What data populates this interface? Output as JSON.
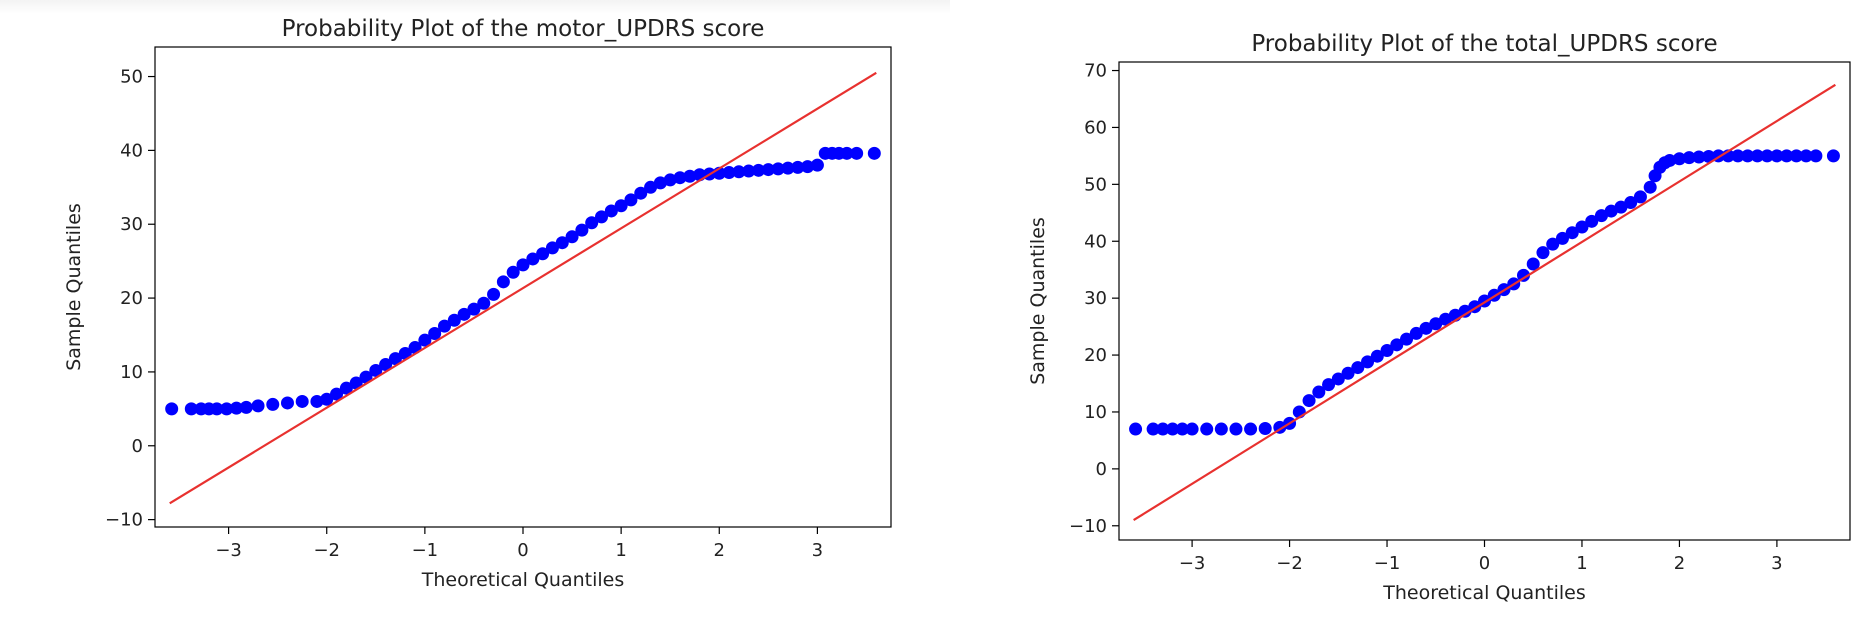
{
  "chart_data": [
    {
      "type": "scatter",
      "title": "Probability Plot of the motor_UPDRS score",
      "xlabel": "Theoretical Quantiles",
      "ylabel": "Sample Quantiles",
      "xlim": [
        -3.75,
        3.75
      ],
      "ylim": [
        -11,
        54
      ],
      "xticks": [
        -3,
        -2,
        -1,
        0,
        1,
        2,
        3
      ],
      "xtick_labels": [
        "−3",
        "−2",
        "−1",
        "0",
        "1",
        "2",
        "3"
      ],
      "yticks": [
        -10,
        0,
        10,
        20,
        30,
        40,
        50
      ],
      "ytick_labels": [
        "−10",
        "0",
        "10",
        "20",
        "30",
        "40",
        "50"
      ],
      "grid": false,
      "series": [
        {
          "kind": "points",
          "color": "#0000ff",
          "x": [
            -3.58,
            -3.38,
            -3.28,
            -3.2,
            -3.12,
            -3.02,
            -2.92,
            -2.82,
            -2.7,
            -2.55,
            -2.4,
            -2.25,
            -2.1,
            -2.0,
            -1.9,
            -1.8,
            -1.7,
            -1.6,
            -1.5,
            -1.4,
            -1.3,
            -1.2,
            -1.1,
            -1.0,
            -0.9,
            -0.8,
            -0.7,
            -0.6,
            -0.5,
            -0.4,
            -0.3,
            -0.2,
            -0.1,
            0.0,
            0.1,
            0.2,
            0.3,
            0.4,
            0.5,
            0.6,
            0.7,
            0.8,
            0.9,
            1.0,
            1.1,
            1.2,
            1.3,
            1.4,
            1.5,
            1.6,
            1.7,
            1.8,
            1.9,
            2.0,
            2.1,
            2.2,
            2.3,
            2.4,
            2.5,
            2.6,
            2.7,
            2.8,
            2.9,
            3.0,
            3.08,
            3.15,
            3.22,
            3.3,
            3.4,
            3.58
          ],
          "y": [
            5.0,
            5.0,
            5.0,
            5.0,
            5.0,
            5.0,
            5.1,
            5.2,
            5.4,
            5.6,
            5.8,
            6.0,
            6.0,
            6.3,
            7.0,
            7.8,
            8.5,
            9.3,
            10.2,
            11.0,
            11.8,
            12.5,
            13.3,
            14.3,
            15.2,
            16.2,
            17.0,
            17.8,
            18.5,
            19.3,
            20.5,
            22.2,
            23.5,
            24.5,
            25.3,
            26.0,
            26.8,
            27.5,
            28.3,
            29.2,
            30.2,
            31.0,
            31.8,
            32.5,
            33.3,
            34.2,
            35.0,
            35.6,
            36.0,
            36.3,
            36.5,
            36.7,
            36.8,
            36.9,
            37.0,
            37.1,
            37.2,
            37.3,
            37.4,
            37.5,
            37.6,
            37.7,
            37.8,
            38.0,
            39.6,
            39.6,
            39.6,
            39.6,
            39.6,
            39.6
          ]
        },
        {
          "kind": "line",
          "color": "#e8312f",
          "x": [
            -3.6,
            3.6
          ],
          "y": [
            -7.8,
            50.5
          ]
        }
      ]
    },
    {
      "type": "scatter",
      "title": "Probability Plot of the total_UPDRS score",
      "xlabel": "Theoretical Quantiles",
      "ylabel": "Sample Quantiles",
      "xlim": [
        -3.75,
        3.75
      ],
      "ylim": [
        -12.5,
        71.5
      ],
      "xticks": [
        -3,
        -2,
        -1,
        0,
        1,
        2,
        3
      ],
      "xtick_labels": [
        "−3",
        "−2",
        "−1",
        "0",
        "1",
        "2",
        "3"
      ],
      "yticks": [
        -10,
        0,
        10,
        20,
        30,
        40,
        50,
        60,
        70
      ],
      "ytick_labels": [
        "−10",
        "0",
        "10",
        "20",
        "30",
        "40",
        "50",
        "60",
        "70"
      ],
      "grid": false,
      "series": [
        {
          "kind": "points",
          "color": "#0000ff",
          "x": [
            -3.58,
            -3.4,
            -3.3,
            -3.2,
            -3.1,
            -3.0,
            -2.85,
            -2.7,
            -2.55,
            -2.4,
            -2.25,
            -2.1,
            -2.0,
            -1.9,
            -1.8,
            -1.7,
            -1.6,
            -1.5,
            -1.4,
            -1.3,
            -1.2,
            -1.1,
            -1.0,
            -0.9,
            -0.8,
            -0.7,
            -0.6,
            -0.5,
            -0.4,
            -0.3,
            -0.2,
            -0.1,
            0.0,
            0.1,
            0.2,
            0.3,
            0.4,
            0.5,
            0.6,
            0.7,
            0.8,
            0.9,
            1.0,
            1.1,
            1.2,
            1.3,
            1.4,
            1.5,
            1.6,
            1.7,
            1.75,
            1.8,
            1.85,
            1.9,
            2.0,
            2.1,
            2.2,
            2.3,
            2.4,
            2.5,
            2.6,
            2.7,
            2.8,
            2.9,
            3.0,
            3.1,
            3.2,
            3.3,
            3.4,
            3.58
          ],
          "y": [
            7.0,
            7.0,
            7.0,
            7.0,
            7.0,
            7.0,
            7.0,
            7.0,
            7.0,
            7.0,
            7.1,
            7.3,
            8.0,
            10.0,
            12.0,
            13.5,
            14.8,
            15.8,
            16.8,
            17.8,
            18.8,
            19.8,
            20.8,
            21.8,
            22.8,
            23.8,
            24.7,
            25.5,
            26.3,
            27.0,
            27.7,
            28.5,
            29.5,
            30.5,
            31.5,
            32.5,
            34.0,
            36.0,
            38.0,
            39.5,
            40.5,
            41.5,
            42.5,
            43.5,
            44.5,
            45.3,
            46.0,
            46.8,
            47.8,
            49.5,
            51.5,
            53.0,
            53.8,
            54.2,
            54.5,
            54.7,
            54.8,
            54.9,
            55.0,
            55.0,
            55.0,
            55.0,
            55.0,
            55.0,
            55.0,
            55.0,
            55.0,
            55.0,
            55.0,
            55.0
          ]
        },
        {
          "kind": "line",
          "color": "#e8312f",
          "x": [
            -3.6,
            3.6
          ],
          "y": [
            -9.0,
            67.5
          ]
        }
      ]
    }
  ]
}
